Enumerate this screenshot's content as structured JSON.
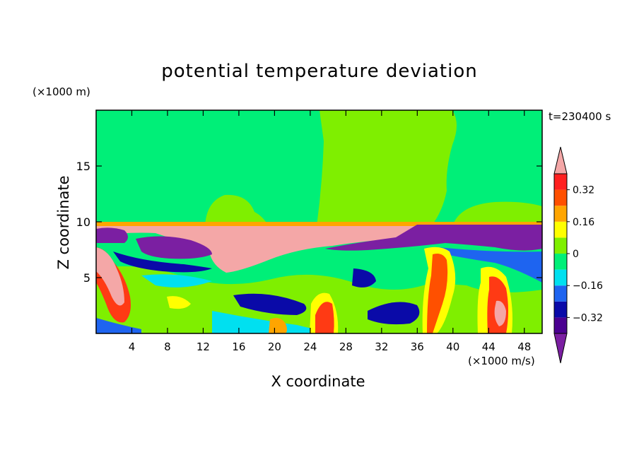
{
  "chart_data": {
    "type": "heatmap",
    "title": "potential temperature deviation",
    "xlabel": "X coordinate",
    "ylabel": "Z coordinate",
    "x_units": "(×1000 m/s)",
    "z_units": "(×1000 m)",
    "timestamp": "t=230400 s",
    "xlim": [
      0,
      50
    ],
    "ylim": [
      0,
      20
    ],
    "x_ticks": [
      4,
      8,
      12,
      16,
      20,
      24,
      28,
      32,
      36,
      40,
      44,
      48
    ],
    "y_ticks": [
      5,
      10,
      15
    ],
    "colorbar": {
      "levels": [
        -0.4,
        -0.32,
        -0.24,
        -0.16,
        -0.08,
        0,
        0.08,
        0.16,
        0.24,
        0.32,
        0.4
      ],
      "tick_labels": [
        "0.32",
        "0.16",
        "0",
        "−0.16",
        "−0.32"
      ],
      "tick_values": [
        0.32,
        0.16,
        0,
        -0.16,
        -0.32
      ],
      "colors": [
        "#7b1fa2",
        "#4b0091",
        "#0a0aa8",
        "#1e64f0",
        "#00e0f0",
        "#00ef78",
        "#7fef00",
        "#ffff00",
        "#ffa500",
        "#ff5000",
        "#ff2020",
        "#f4a7a7"
      ]
    }
  }
}
